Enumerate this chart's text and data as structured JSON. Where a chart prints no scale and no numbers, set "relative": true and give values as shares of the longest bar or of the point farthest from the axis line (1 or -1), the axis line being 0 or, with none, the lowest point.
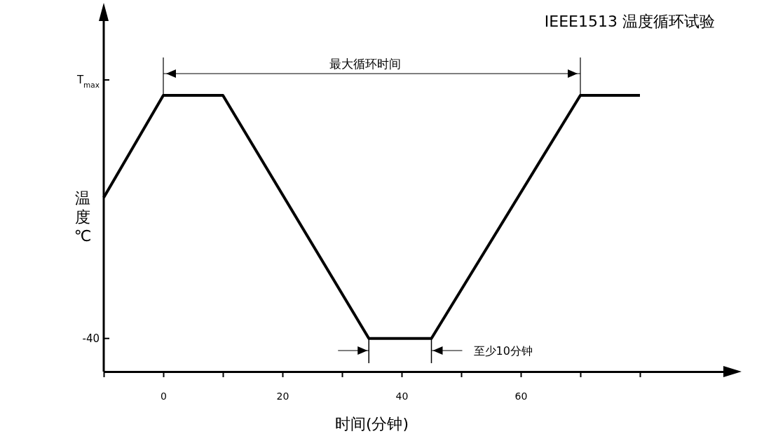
{
  "chart_data": {
    "type": "line",
    "title": "IEEE1513 温度循环试验",
    "xlabel": "时间(分钟)",
    "ylabel": "温度℃",
    "relative": true,
    "x": [
      -10,
      0,
      10,
      34.5,
      45,
      70,
      80
    ],
    "series": [
      {
        "color": "#000000",
        "values": [
          0.63,
          1,
          1,
          0.12,
          0.12,
          1,
          1
        ]
      }
    ],
    "xlim": [
      -10,
      94
    ],
    "xticks": [
      {
        "value": -10,
        "label": null
      },
      0,
      {
        "value": 10,
        "label": null
      },
      20,
      {
        "value": 30,
        "label": null
      },
      40,
      {
        "value": 50,
        "label": null
      },
      60,
      {
        "value": 70,
        "label": null
      },
      {
        "value": 80,
        "label": null
      }
    ],
    "annotations": [
      "-40",
      "T$_{max}$",
      "最大循环时间",
      "至少10分钟"
    ],
    "marker": "none",
    "line_style": "solid"
  }
}
